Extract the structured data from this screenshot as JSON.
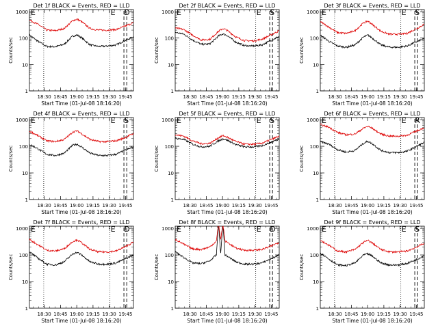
{
  "colors": {
    "events": "#000000",
    "lld": "#dd0000",
    "axis": "#000000"
  },
  "common": {
    "xlabel": "Start Time (01-Jul-08 18:16:20)",
    "ylabel": "Counts/sec",
    "xticks": [
      "18:30",
      "18:45",
      "19:00",
      "19:15",
      "19:30",
      "19:45"
    ],
    "xtick_minutes": [
      13.67,
      28.67,
      43.67,
      58.67,
      73.67,
      88.67
    ],
    "xlim_minutes": [
      0,
      96
    ],
    "yticks": [
      "1",
      "10",
      "100",
      "1000"
    ],
    "ylim": [
      1,
      1200
    ],
    "yscale": "log",
    "markers": {
      "E1": "E",
      "E2": "E",
      "dotted_minutes": [
        13.2,
        74.3
      ],
      "dashed_minutes": [
        87.2,
        89.8
      ]
    }
  },
  "chart_data": [
    {
      "type": "line",
      "title": "Det 1f BLACK = Events, RED = LLD",
      "corner_label": "D",
      "series": [
        {
          "name": "Events",
          "x": [
            0,
            8,
            16,
            24,
            32,
            40,
            44,
            48,
            56,
            64,
            72,
            80,
            88,
            96
          ],
          "y": [
            130,
            75,
            48,
            47,
            58,
            120,
            130,
            105,
            55,
            48,
            50,
            55,
            80,
            110
          ]
        },
        {
          "name": "LLD",
          "x": [
            0,
            8,
            16,
            24,
            32,
            40,
            44,
            48,
            56,
            64,
            72,
            80,
            88,
            96
          ],
          "y": [
            480,
            330,
            200,
            190,
            230,
            460,
            520,
            420,
            230,
            200,
            200,
            210,
            280,
            380
          ]
        }
      ]
    },
    {
      "type": "line",
      "title": "Det 2f BLACK = Events, RED = LLD",
      "corner_label": "S",
      "series": [
        {
          "name": "Events",
          "x": [
            0,
            8,
            16,
            24,
            32,
            40,
            44,
            48,
            56,
            64,
            72,
            80,
            88,
            96
          ],
          "y": [
            165,
            140,
            85,
            58,
            60,
            120,
            145,
            125,
            70,
            52,
            50,
            55,
            80,
            115
          ]
        },
        {
          "name": "LLD",
          "x": [
            0,
            8,
            16,
            24,
            32,
            40,
            44,
            48,
            56,
            64,
            72,
            80,
            88,
            96
          ],
          "y": [
            240,
            210,
            130,
            85,
            90,
            180,
            230,
            195,
            110,
            80,
            78,
            90,
            130,
            190
          ]
        }
      ]
    },
    {
      "type": "line",
      "title": "Det 3f BLACK = Events, RED = LLD",
      "corner_label": "S",
      "series": [
        {
          "name": "Events",
          "x": [
            0,
            8,
            16,
            24,
            32,
            40,
            44,
            48,
            56,
            64,
            72,
            80,
            88,
            96
          ],
          "y": [
            130,
            75,
            50,
            45,
            55,
            110,
            130,
            100,
            55,
            45,
            45,
            50,
            70,
            95
          ]
        },
        {
          "name": "LLD",
          "x": [
            0,
            8,
            16,
            24,
            32,
            40,
            44,
            48,
            56,
            64,
            72,
            80,
            88,
            96
          ],
          "y": [
            420,
            260,
            160,
            150,
            190,
            380,
            440,
            330,
            180,
            140,
            140,
            150,
            220,
            330
          ]
        }
      ]
    },
    {
      "type": "line",
      "title": "Det 4f BLACK = Events, RED = LLD",
      "corner_label": "S",
      "series": [
        {
          "name": "Events",
          "x": [
            0,
            8,
            16,
            24,
            32,
            40,
            44,
            48,
            56,
            64,
            72,
            80,
            88,
            96
          ],
          "y": [
            120,
            80,
            50,
            45,
            55,
            110,
            120,
            95,
            55,
            45,
            45,
            50,
            70,
            95
          ]
        },
        {
          "name": "LLD",
          "x": [
            0,
            8,
            16,
            24,
            32,
            40,
            44,
            48,
            56,
            64,
            72,
            80,
            88,
            96
          ],
          "y": [
            370,
            250,
            160,
            150,
            180,
            340,
            380,
            300,
            180,
            150,
            150,
            160,
            210,
            300
          ]
        }
      ]
    },
    {
      "type": "line",
      "title": "Det 5f BLACK = Events, RED = LLD",
      "corner_label": "S",
      "series": [
        {
          "name": "Events",
          "x": [
            0,
            8,
            16,
            24,
            32,
            40,
            44,
            48,
            56,
            64,
            72,
            80,
            88,
            96
          ],
          "y": [
            200,
            180,
            120,
            95,
            100,
            160,
            190,
            170,
            115,
            95,
            95,
            105,
            140,
            190
          ]
        },
        {
          "name": "LLD",
          "x": [
            0,
            8,
            16,
            24,
            32,
            40,
            44,
            48,
            56,
            64,
            72,
            80,
            88,
            96
          ],
          "y": [
            270,
            240,
            160,
            125,
            130,
            210,
            250,
            220,
            150,
            120,
            120,
            130,
            175,
            240
          ]
        }
      ]
    },
    {
      "type": "line",
      "title": "Det 6f BLACK = Events, RED = LLD",
      "corner_label": "R",
      "series": [
        {
          "name": "Events",
          "x": [
            0,
            8,
            16,
            24,
            32,
            40,
            44,
            48,
            56,
            64,
            72,
            80,
            88,
            96
          ],
          "y": [
            150,
            120,
            75,
            60,
            70,
            130,
            155,
            125,
            70,
            58,
            58,
            65,
            95,
            140
          ]
        },
        {
          "name": "LLD",
          "x": [
            0,
            8,
            16,
            24,
            32,
            40,
            44,
            48,
            56,
            64,
            72,
            80,
            88,
            96
          ],
          "y": [
            650,
            520,
            330,
            270,
            290,
            480,
            560,
            470,
            290,
            240,
            240,
            260,
            360,
            500
          ]
        }
      ]
    },
    {
      "type": "line",
      "title": "Det 7f BLACK = Events, RED = LLD",
      "corner_label": "D",
      "series": [
        {
          "name": "Events",
          "x": [
            0,
            8,
            16,
            24,
            32,
            40,
            44,
            48,
            56,
            64,
            72,
            80,
            88,
            96
          ],
          "y": [
            130,
            75,
            45,
            42,
            55,
            110,
            125,
            100,
            55,
            45,
            45,
            50,
            70,
            100
          ]
        },
        {
          "name": "LLD",
          "x": [
            0,
            8,
            16,
            24,
            32,
            40,
            44,
            48,
            56,
            64,
            72,
            80,
            88,
            96
          ],
          "y": [
            380,
            240,
            150,
            140,
            170,
            320,
            370,
            290,
            160,
            130,
            130,
            140,
            200,
            300
          ]
        }
      ]
    },
    {
      "type": "line",
      "title": "Det 8f BLACK = Events, RED = LLD",
      "corner_label": "D",
      "series": [
        {
          "name": "Events",
          "x": [
            0,
            8,
            16,
            24,
            32,
            38,
            40,
            42,
            44,
            46,
            48,
            56,
            64,
            72,
            80,
            88,
            96
          ],
          "y": [
            130,
            80,
            50,
            47,
            60,
            100,
            1500,
            110,
            1500,
            100,
            90,
            55,
            45,
            45,
            50,
            70,
            100
          ]
        },
        {
          "name": "LLD",
          "x": [
            0,
            8,
            16,
            24,
            32,
            38,
            40,
            42,
            44,
            46,
            48,
            56,
            64,
            72,
            80,
            88,
            96
          ],
          "y": [
            390,
            250,
            170,
            160,
            200,
            330,
            1500,
            380,
            1500,
            330,
            300,
            180,
            150,
            150,
            160,
            210,
            300
          ]
        }
      ]
    },
    {
      "type": "line",
      "title": "Det 9f BLACK = Events, RED = LLD",
      "corner_label": "S",
      "series": [
        {
          "name": "Events",
          "x": [
            0,
            8,
            16,
            24,
            32,
            40,
            44,
            48,
            56,
            64,
            72,
            80,
            88,
            96
          ],
          "y": [
            120,
            70,
            42,
            40,
            50,
            100,
            110,
            90,
            50,
            42,
            42,
            48,
            65,
            95
          ]
        },
        {
          "name": "LLD",
          "x": [
            0,
            8,
            16,
            24,
            32,
            40,
            44,
            48,
            56,
            64,
            72,
            80,
            88,
            96
          ],
          "y": [
            360,
            230,
            140,
            130,
            160,
            300,
            350,
            280,
            160,
            130,
            130,
            140,
            190,
            280
          ]
        }
      ]
    }
  ]
}
